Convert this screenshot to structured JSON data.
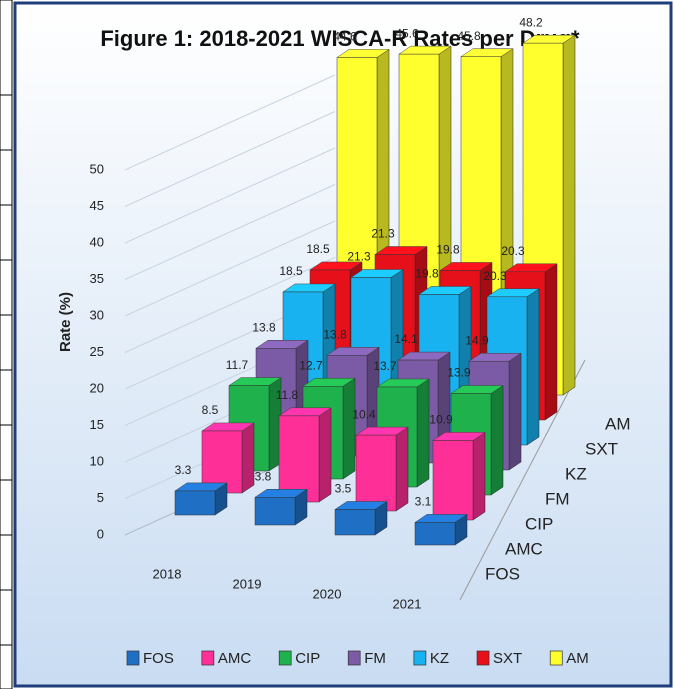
{
  "chart_data": {
    "type": "bar3d",
    "title": "Figure 1: 2018-2021 WISCA-R Rates per Drug*",
    "y_label": "Rate (%)",
    "categories": [
      "2018",
      "2019",
      "2020",
      "2021"
    ],
    "series": [
      {
        "name": "FOS",
        "color": "#1f6fc5",
        "values": [
          3.3,
          3.8,
          3.5,
          3.1
        ]
      },
      {
        "name": "AMC",
        "color": "#ff2f98",
        "values": [
          8.5,
          11.8,
          10.4,
          10.9
        ]
      },
      {
        "name": "CIP",
        "color": "#1fb14c",
        "values": [
          11.7,
          12.7,
          13.7,
          13.9
        ]
      },
      {
        "name": "FM",
        "color": "#7b5ba6",
        "values": [
          13.8,
          13.8,
          14.1,
          14.9
        ]
      },
      {
        "name": "KZ",
        "color": "#19b2f0",
        "values": [
          18.5,
          21.3,
          19.8,
          20.3
        ]
      },
      {
        "name": "SXT",
        "color": "#e6101a",
        "values": [
          18.5,
          21.3,
          19.8,
          20.3
        ]
      },
      {
        "name": "AM",
        "color": "#ffff2e",
        "values": [
          44.6,
          45.6,
          45.8,
          48.2
        ]
      }
    ],
    "ylim": [
      0,
      50
    ],
    "yticks": [
      0,
      5,
      10,
      15,
      20,
      25,
      30,
      35,
      40,
      45,
      50
    ],
    "grid": true,
    "legend": "bottom"
  }
}
